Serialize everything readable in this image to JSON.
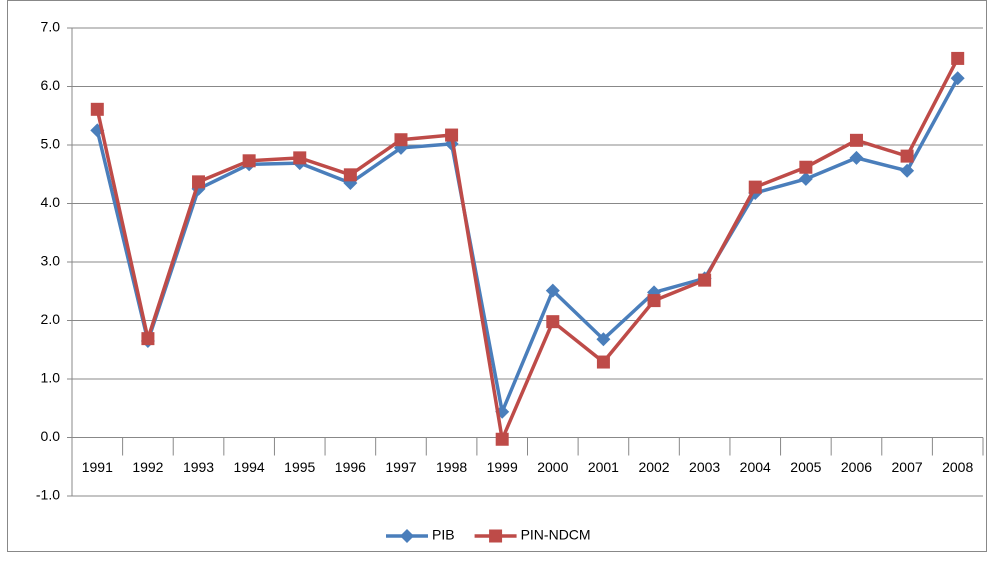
{
  "chart_data": {
    "type": "line",
    "categories": [
      "1991",
      "1992",
      "1993",
      "1994",
      "1995",
      "1996",
      "1997",
      "1998",
      "1999",
      "2000",
      "2001",
      "2002",
      "2003",
      "2004",
      "2005",
      "2006",
      "2007",
      "2008"
    ],
    "series": [
      {
        "name": "PIB",
        "color": "#4a7ebb",
        "marker": "diamond",
        "values": [
          5.25,
          1.65,
          4.25,
          4.67,
          4.69,
          4.35,
          4.95,
          5.02,
          0.44,
          2.51,
          1.68,
          2.48,
          2.72,
          4.18,
          4.42,
          4.78,
          4.56,
          6.14
        ]
      },
      {
        "name": "PIN-NDCM",
        "color": "#be4b48",
        "marker": "square",
        "values": [
          5.61,
          1.69,
          4.37,
          4.73,
          4.78,
          4.49,
          5.09,
          5.17,
          -0.03,
          1.98,
          1.29,
          2.34,
          2.69,
          4.28,
          4.62,
          5.08,
          4.81,
          6.48
        ]
      }
    ],
    "ylim": [
      -1,
      7
    ],
    "yticks": [
      {
        "value": -1,
        "label": "-1.0"
      },
      {
        "value": 0,
        "label": "0.0"
      },
      {
        "value": 1,
        "label": "1.0"
      },
      {
        "value": 2,
        "label": "2.0"
      },
      {
        "value": 3,
        "label": "3.0"
      },
      {
        "value": 4,
        "label": "4.0"
      },
      {
        "value": 5,
        "label": "5.0"
      },
      {
        "value": 6,
        "label": "6.0"
      },
      {
        "value": 7,
        "label": "7.0"
      }
    ],
    "grid": true,
    "legend": "bottom"
  }
}
